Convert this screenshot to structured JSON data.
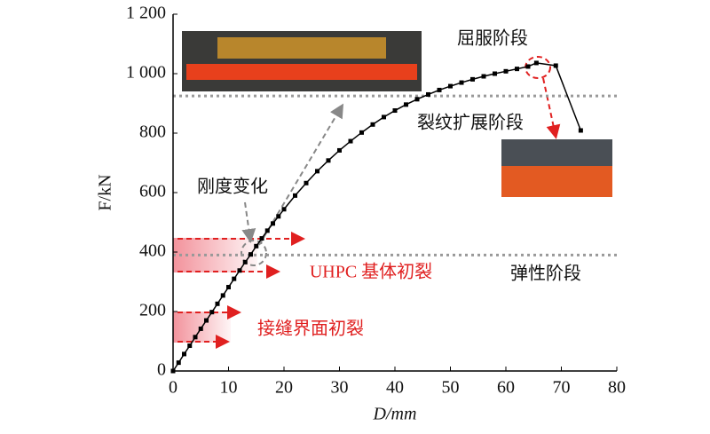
{
  "chart_data": {
    "type": "line",
    "x_label": "D/mm",
    "y_label": "F/kN",
    "x": [
      0,
      1,
      2,
      3,
      4,
      5,
      6,
      7,
      8,
      9,
      10,
      11,
      12,
      13,
      14,
      15,
      16,
      17,
      18,
      19,
      20,
      22,
      24,
      26,
      28,
      30,
      32,
      34,
      36,
      38,
      40,
      42,
      44,
      46,
      48,
      50,
      52,
      54,
      56,
      58,
      60,
      62,
      64,
      65.5,
      69,
      73.5
    ],
    "series": [
      {
        "color": "#000000",
        "values": [
          0,
          28,
          57,
          85,
          114,
          142,
          170,
          198,
          226,
          254,
          282,
          310,
          338,
          366,
          392,
          420,
          446,
          472,
          496,
          520,
          544,
          590,
          632,
          672,
          708,
          742,
          773,
          802,
          829,
          854,
          876,
          896,
          914,
          930,
          945,
          958,
          970,
          981,
          991,
          1000,
          1008,
          1016,
          1024,
          1036,
          1027,
          809
        ]
      }
    ],
    "xlim": [
      0,
      80
    ],
    "xticks": [
      0,
      10,
      20,
      30,
      40,
      50,
      60,
      70,
      80
    ],
    "ylim": [
      0,
      1200
    ],
    "yticks": [
      0,
      200,
      400,
      600,
      800,
      {
        "value": 1000,
        "label": "1 000"
      },
      {
        "value": 1200,
        "label": "1 200"
      }
    ],
    "reference_lines": [
      925,
      390
    ],
    "annotations": [
      "屈服阶段",
      "裂纹扩展阶段",
      "刚度变化",
      "UHPC 基体初裂",
      "弹性阶段",
      "接缝界面初裂"
    ]
  }
}
